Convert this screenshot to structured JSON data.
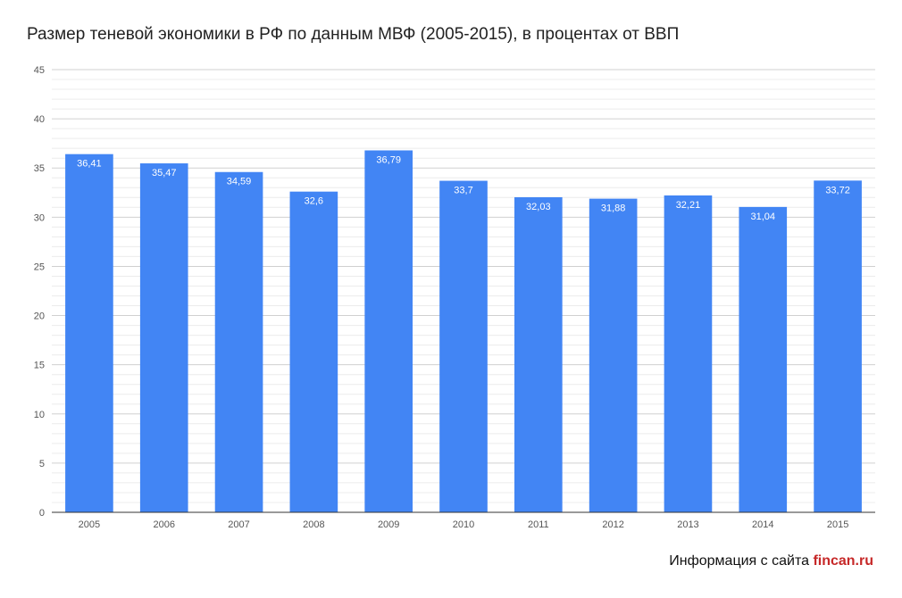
{
  "chart_data": {
    "type": "bar",
    "title": "Размер теневой экономики в РФ по данным МВФ (2005-2015), в процентах от ВВП",
    "categories": [
      "2005",
      "2006",
      "2007",
      "2008",
      "2009",
      "2010",
      "2011",
      "2012",
      "2013",
      "2014",
      "2015"
    ],
    "values": [
      36.41,
      35.47,
      34.59,
      32.6,
      36.79,
      33.7,
      32.03,
      31.88,
      32.21,
      31.04,
      33.72
    ],
    "value_labels": [
      "36,41",
      "35,47",
      "34,59",
      "32,6",
      "36,79",
      "33,7",
      "32,03",
      "31,88",
      "32,21",
      "31,04",
      "33,72"
    ],
    "y_ticks": [
      0,
      5,
      10,
      15,
      20,
      25,
      30,
      35,
      40,
      45
    ],
    "ylim": [
      0,
      45
    ],
    "xlabel": "",
    "ylabel": "",
    "grid": true,
    "legend": "none",
    "colors": {
      "bar": "#4285f4",
      "major_grid": "#d0d0d0",
      "minor_grid": "#ececec",
      "axis": "#333333"
    }
  },
  "footer": {
    "prefix": "Информация с сайта ",
    "site": "fincan.ru"
  }
}
